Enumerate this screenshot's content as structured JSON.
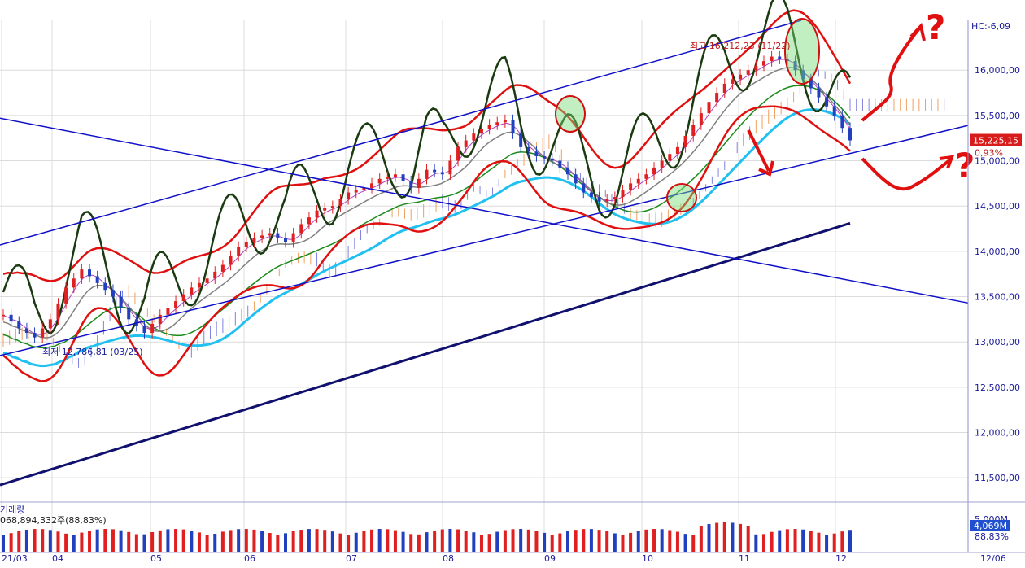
{
  "chart_data": {
    "type": "candlestick",
    "price_axis": {
      "ticks": [
        "16,000,00",
        "15,500,00",
        "15,000,00",
        "14,500,00",
        "14,000,00",
        "13,500,00",
        "13,000,00",
        "12,500,00",
        "12,000,00",
        "11,500,00"
      ],
      "tick_values": [
        16000,
        15500,
        15000,
        14500,
        14000,
        13500,
        13000,
        12500,
        12000,
        11500
      ],
      "range": [
        11250,
        16550
      ],
      "grid": true
    },
    "time_axis": {
      "labels": [
        "21/03",
        "04",
        "05",
        "06",
        "07",
        "08",
        "09",
        "10",
        "11",
        "12"
      ],
      "right_label": "12/06"
    },
    "header_label": "HC:-6,09",
    "high_annotation": "최고 16,212,23 (11/22)",
    "low_annotation": "최저 12,786,81 (03/25)",
    "current_price": "15,225,15",
    "change_percent": "0,93%",
    "price_series_approx": [
      [
        0,
        13300
      ],
      [
        10,
        13150
      ],
      [
        20,
        13050
      ],
      [
        30,
        13250
      ],
      [
        40,
        13600
      ],
      [
        50,
        13800
      ],
      [
        60,
        13650
      ],
      [
        70,
        13500
      ],
      [
        80,
        13250
      ],
      [
        90,
        13100
      ],
      [
        100,
        13300
      ],
      [
        110,
        13450
      ],
      [
        120,
        13600
      ],
      [
        130,
        13700
      ],
      [
        140,
        13850
      ],
      [
        150,
        14050
      ],
      [
        160,
        14150
      ],
      [
        170,
        14200
      ],
      [
        180,
        14100
      ],
      [
        190,
        14300
      ],
      [
        200,
        14450
      ],
      [
        210,
        14500
      ],
      [
        220,
        14650
      ],
      [
        230,
        14700
      ],
      [
        240,
        14800
      ],
      [
        250,
        14850
      ],
      [
        260,
        14700
      ],
      [
        270,
        14900
      ],
      [
        280,
        14850
      ],
      [
        290,
        15150
      ],
      [
        300,
        15300
      ],
      [
        310,
        15400
      ],
      [
        320,
        15450
      ],
      [
        330,
        15150
      ],
      [
        340,
        15050
      ],
      [
        350,
        15000
      ],
      [
        360,
        14850
      ],
      [
        370,
        14650
      ],
      [
        380,
        14550
      ],
      [
        390,
        14600
      ],
      [
        400,
        14750
      ],
      [
        410,
        14850
      ],
      [
        420,
        15000
      ],
      [
        430,
        15150
      ],
      [
        440,
        15400
      ],
      [
        450,
        15650
      ],
      [
        460,
        15850
      ],
      [
        470,
        15950
      ],
      [
        480,
        16050
      ],
      [
        490,
        16150
      ],
      [
        500,
        16100
      ],
      [
        510,
        15900
      ],
      [
        520,
        15700
      ],
      [
        530,
        15500
      ],
      [
        540,
        15225
      ]
    ],
    "volume_panel": {
      "title": "거래량",
      "summary": "068,894,332주(88,83%)",
      "axis_label": "5,000M",
      "current_volume": "4,069M",
      "current_percent": "88,83%"
    },
    "annotations": [
      "?",
      "?"
    ],
    "colors": {
      "up_candle": "#e02020",
      "down_candle": "#2040c0",
      "bollinger": "#e01010",
      "channel": "#1010c8",
      "long_ma": "#10106e",
      "mid_ma": "#20c0f0",
      "stochastic": "#1a3a10",
      "cloud_orange": "#f0a060",
      "cloud_blue": "#8080e0",
      "current_badge": "#d81c1c",
      "volume_badge": "#2050d0"
    }
  }
}
